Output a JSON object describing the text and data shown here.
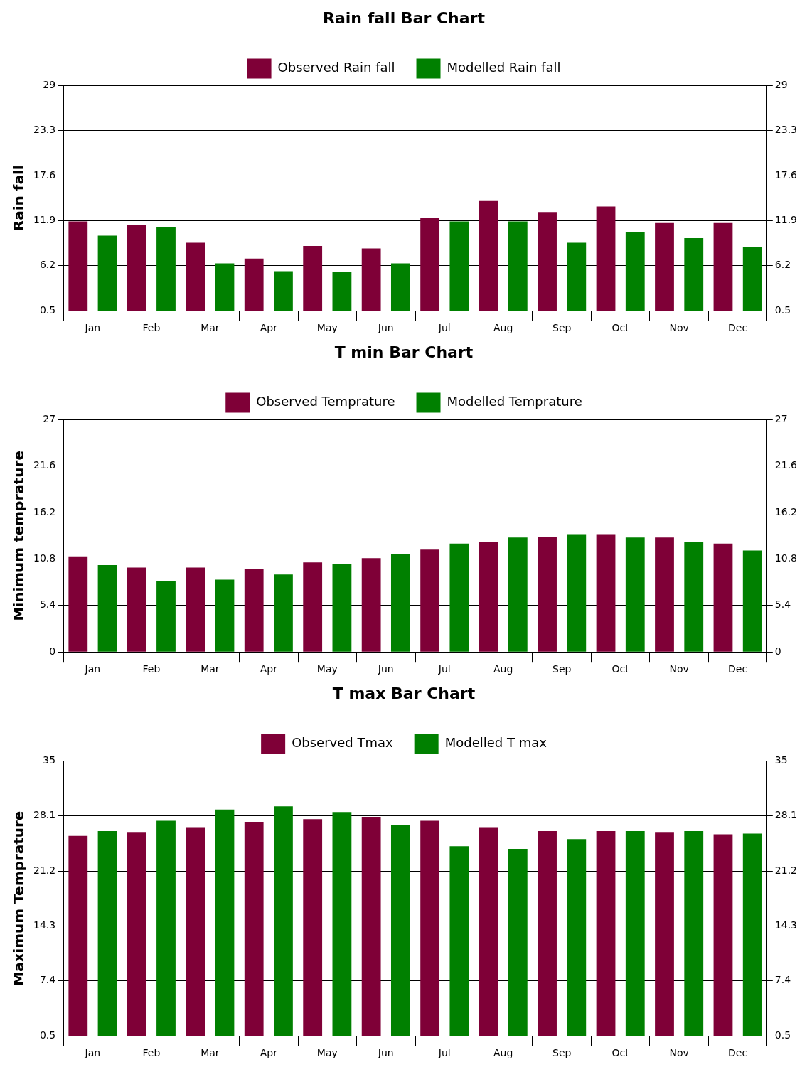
{
  "chart_data": [
    {
      "type": "bar",
      "title": "Rain fall Bar Chart",
      "ylabel": "Rain fall",
      "categories": [
        "Jan",
        "Feb",
        "Mar",
        "Apr",
        "May",
        "Jun",
        "Jul",
        "Aug",
        "Sep",
        "Oct",
        "Nov",
        "Dec"
      ],
      "series": [
        {
          "name": "Observed Rain fall",
          "color": "#7f0037",
          "values": [
            11.8,
            11.4,
            9.1,
            7.1,
            8.7,
            8.4,
            12.3,
            14.4,
            13.0,
            13.7,
            11.6,
            11.6
          ]
        },
        {
          "name": "Modelled Rain fall",
          "color": "#008000",
          "values": [
            10.0,
            11.1,
            6.5,
            5.5,
            5.4,
            6.5,
            11.8,
            11.8,
            9.1,
            10.5,
            9.7,
            8.6
          ]
        }
      ],
      "ylim": [
        0.5,
        29
      ],
      "yticks": [
        0.5,
        6.2,
        11.9,
        17.6,
        23.3,
        29
      ],
      "y2lim": [
        0.5,
        29
      ],
      "y2ticks": [
        0.5,
        6.2,
        11.9,
        17.6,
        23.3,
        29
      ],
      "grid": "y",
      "legend": "top"
    },
    {
      "type": "bar",
      "title": "T min Bar Chart",
      "ylabel": "Minimum temprature",
      "categories": [
        "Jan",
        "Feb",
        "Mar",
        "Apr",
        "May",
        "Jun",
        "Jul",
        "Aug",
        "Sep",
        "Oct",
        "Nov",
        "Dec"
      ],
      "series": [
        {
          "name": "Observed Temprature",
          "color": "#7f0037",
          "values": [
            11.1,
            9.8,
            9.8,
            9.6,
            10.4,
            10.9,
            11.9,
            12.8,
            13.4,
            13.7,
            13.3,
            12.6
          ]
        },
        {
          "name": "Modelled Temprature",
          "color": "#008000",
          "values": [
            10.1,
            8.2,
            8.4,
            9.0,
            10.2,
            11.4,
            12.6,
            13.3,
            13.7,
            13.3,
            12.8,
            11.8
          ]
        }
      ],
      "ylim": [
        0,
        27
      ],
      "yticks": [
        0,
        5.4,
        10.8,
        16.2,
        21.6,
        27
      ],
      "y2lim": [
        0,
        27
      ],
      "y2ticks": [
        0,
        5.4,
        10.8,
        16.2,
        21.6,
        27
      ],
      "grid": "y",
      "legend": "top"
    },
    {
      "type": "bar",
      "title": "T max Bar Chart",
      "ylabel": "Maximum Temprature",
      "categories": [
        "Jan",
        "Feb",
        "Mar",
        "Apr",
        "May",
        "Jun",
        "Jul",
        "Aug",
        "Sep",
        "Oct",
        "Nov",
        "Dec"
      ],
      "series": [
        {
          "name": "Observed Tmax",
          "color": "#7f0037",
          "values": [
            25.6,
            26.0,
            26.6,
            27.3,
            27.7,
            28.0,
            27.5,
            26.6,
            26.2,
            26.2,
            26.0,
            25.8
          ]
        },
        {
          "name": "Modelled T max",
          "color": "#008000",
          "values": [
            26.2,
            27.5,
            28.9,
            29.3,
            28.6,
            27.0,
            24.3,
            23.9,
            25.2,
            26.2,
            26.2,
            25.9
          ]
        }
      ],
      "ylim": [
        0.5,
        35
      ],
      "yticks": [
        0.5,
        7.4,
        14.3,
        21.2,
        28.1,
        35
      ],
      "y2lim": [
        0.5,
        35
      ],
      "y2ticks": [
        0.5,
        7.4,
        14.3,
        21.2,
        28.1,
        35
      ],
      "grid": "y",
      "legend": "top"
    }
  ]
}
